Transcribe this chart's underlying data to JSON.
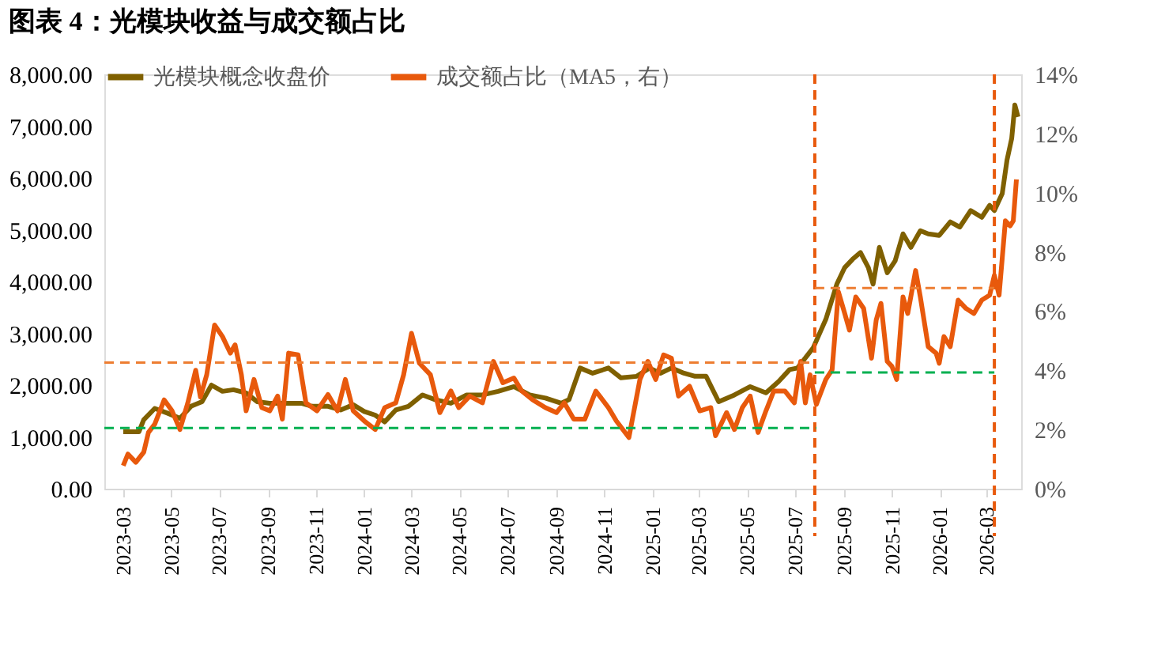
{
  "chart_data": {
    "type": "line",
    "title": "图表 4：光模块收益与成交额占比",
    "xlim": [
      "2023-02-05",
      "2026-04-14"
    ],
    "xticks": [
      "2023-03",
      "2023-05",
      "2023-07",
      "2023-09",
      "2023-11",
      "2024-01",
      "2024-03",
      "2024-05",
      "2024-07",
      "2024-09",
      "2024-11",
      "2025-01",
      "2025-03",
      "2025-05",
      "2025-07",
      "2025-09",
      "2025-11",
      "2026-01",
      "2026-03"
    ],
    "ylim": [
      0,
      8000
    ],
    "yticks": [
      {
        "value": 0,
        "label": "0.00"
      },
      {
        "value": 1000,
        "label": "1,000.00"
      },
      {
        "value": 2000,
        "label": "2,000.00"
      },
      {
        "value": 3000,
        "label": "3,000.00"
      },
      {
        "value": 4000,
        "label": "4,000.00"
      },
      {
        "value": 5000,
        "label": "5,000.00"
      },
      {
        "value": 6000,
        "label": "6,000.00"
      },
      {
        "value": 7000,
        "label": "7,000.00"
      },
      {
        "value": 8000,
        "label": "8,000.00"
      }
    ],
    "y2lim": [
      0,
      14
    ],
    "y2ticks": [
      {
        "value": 0,
        "label": "0%"
      },
      {
        "value": 2,
        "label": "2%"
      },
      {
        "value": 4,
        "label": "4%"
      },
      {
        "value": 6,
        "label": "6%"
      },
      {
        "value": 8,
        "label": "8%"
      },
      {
        "value": 10,
        "label": "10%"
      },
      {
        "value": 12,
        "label": "12%"
      },
      {
        "value": 14,
        "label": "14%"
      }
    ],
    "grid": false,
    "legend": "top",
    "line_style": "solid",
    "marker": "none",
    "series": [
      {
        "name": "光模块概念收盘价",
        "color": "#7f6000",
        "axis": "y",
        "x": [
          "2023-03-01",
          "2023-03-21",
          "2023-03-27",
          "2023-04-10",
          "2023-04-26",
          "2023-05-12",
          "2023-05-26",
          "2023-06-09",
          "2023-06-21",
          "2023-07-05",
          "2023-07-19",
          "2023-08-04",
          "2023-08-18",
          "2023-09-03",
          "2023-09-23",
          "2023-10-13",
          "2023-10-27",
          "2023-11-16",
          "2023-12-02",
          "2023-12-18",
          "2024-01-01",
          "2024-01-15",
          "2024-01-27",
          "2024-02-10",
          "2024-02-26",
          "2024-03-15",
          "2024-03-31",
          "2024-04-20",
          "2024-05-10",
          "2024-05-30",
          "2024-06-19",
          "2024-07-09",
          "2024-07-29",
          "2024-08-18",
          "2024-09-07",
          "2024-09-17",
          "2024-10-01",
          "2024-10-17",
          "2024-11-06",
          "2024-11-22",
          "2024-12-12",
          "2024-12-28",
          "2025-01-11",
          "2025-01-25",
          "2025-02-10",
          "2025-02-24",
          "2025-03-10",
          "2025-03-26",
          "2025-04-15",
          "2025-05-05",
          "2025-05-25",
          "2025-06-10",
          "2025-06-24",
          "2025-07-04",
          "2025-07-24",
          "2025-08-09",
          "2025-08-23",
          "2025-09-02",
          "2025-09-12",
          "2025-09-22",
          "2025-10-02",
          "2025-10-08",
          "2025-10-16",
          "2025-10-26",
          "2025-11-05",
          "2025-11-15",
          "2025-11-25",
          "2025-12-07",
          "2025-12-17",
          "2025-12-31",
          "2026-01-14",
          "2026-01-26",
          "2026-02-09",
          "2026-02-23",
          "2026-03-05",
          "2026-03-11",
          "2026-03-21",
          "2026-03-27",
          "2026-04-02",
          "2026-04-06",
          "2026-04-10"
        ],
        "values": [
          1100,
          1100,
          1330,
          1550,
          1460,
          1360,
          1590,
          1680,
          2000,
          1880,
          1910,
          1850,
          1680,
          1650,
          1650,
          1650,
          1590,
          1590,
          1520,
          1620,
          1490,
          1420,
          1290,
          1520,
          1590,
          1810,
          1720,
          1650,
          1810,
          1810,
          1880,
          1970,
          1810,
          1750,
          1650,
          1720,
          2330,
          2230,
          2330,
          2140,
          2170,
          2330,
          2230,
          2330,
          2230,
          2170,
          2170,
          1680,
          1810,
          1970,
          1850,
          2070,
          2300,
          2330,
          2720,
          3270,
          3950,
          4270,
          4430,
          4560,
          4270,
          3950,
          4660,
          4170,
          4400,
          4920,
          4660,
          4980,
          4920,
          4890,
          5150,
          5050,
          5370,
          5240,
          5470,
          5370,
          5700,
          6340,
          6760,
          7410,
          7180
        ]
      },
      {
        "name": "成交额占比（MA5，右）",
        "color": "#e8590c",
        "axis": "y2",
        "x": [
          "2023-03-01",
          "2023-03-07",
          "2023-03-17",
          "2023-03-27",
          "2023-04-02",
          "2023-04-10",
          "2023-04-22",
          "2023-05-02",
          "2023-05-12",
          "2023-05-22",
          "2023-06-01",
          "2023-06-07",
          "2023-06-15",
          "2023-06-25",
          "2023-07-05",
          "2023-07-15",
          "2023-07-21",
          "2023-07-29",
          "2023-08-04",
          "2023-08-14",
          "2023-08-24",
          "2023-09-03",
          "2023-09-13",
          "2023-09-19",
          "2023-09-27",
          "2023-10-09",
          "2023-10-19",
          "2023-11-02",
          "2023-11-16",
          "2023-11-28",
          "2023-12-08",
          "2023-12-18",
          "2024-01-01",
          "2024-01-15",
          "2024-01-27",
          "2024-02-10",
          "2024-02-20",
          "2024-03-01",
          "2024-03-11",
          "2024-03-25",
          "2024-04-06",
          "2024-04-20",
          "2024-04-30",
          "2024-05-14",
          "2024-05-30",
          "2024-06-13",
          "2024-06-25",
          "2024-07-09",
          "2024-07-19",
          "2024-08-02",
          "2024-08-18",
          "2024-09-01",
          "2024-09-11",
          "2024-09-23",
          "2024-10-07",
          "2024-10-21",
          "2024-11-06",
          "2024-11-16",
          "2024-12-02",
          "2024-12-16",
          "2024-12-26",
          "2025-01-05",
          "2025-01-15",
          "2025-01-25",
          "2025-02-03",
          "2025-02-17",
          "2025-03-02",
          "2025-03-16",
          "2025-03-22",
          "2025-04-05",
          "2025-04-15",
          "2025-04-25",
          "2025-05-05",
          "2025-05-15",
          "2025-05-25",
          "2025-06-04",
          "2025-06-18",
          "2025-06-30",
          "2025-07-08",
          "2025-07-14",
          "2025-07-20",
          "2025-07-28",
          "2025-08-09",
          "2025-08-17",
          "2025-08-25",
          "2025-09-02",
          "2025-09-08",
          "2025-09-16",
          "2025-09-26",
          "2025-10-06",
          "2025-10-12",
          "2025-10-18",
          "2025-10-26",
          "2025-11-01",
          "2025-11-07",
          "2025-11-15",
          "2025-11-21",
          "2025-12-01",
          "2025-12-07",
          "2025-12-17",
          "2025-12-27",
          "2025-12-31",
          "2026-01-06",
          "2026-01-14",
          "2026-01-24",
          "2026-02-03",
          "2026-02-13",
          "2026-02-23",
          "2026-03-05",
          "2026-03-11",
          "2026-03-17",
          "2026-03-25",
          "2026-03-31",
          "2026-04-04",
          "2026-04-08"
        ],
        "values": [
          0.78,
          1.17,
          0.89,
          1.23,
          1.9,
          2.18,
          3.0,
          2.63,
          2.0,
          2.9,
          4.0,
          3.1,
          3.85,
          5.53,
          5.14,
          4.58,
          4.86,
          3.85,
          2.63,
          3.69,
          2.74,
          2.63,
          3.13,
          2.35,
          4.58,
          4.52,
          2.9,
          2.63,
          3.18,
          2.63,
          3.69,
          2.63,
          2.29,
          2.0,
          2.74,
          2.9,
          3.85,
          5.25,
          4.24,
          3.85,
          2.57,
          3.3,
          2.74,
          3.13,
          2.9,
          4.3,
          3.58,
          3.74,
          3.3,
          3.0,
          2.74,
          2.57,
          2.9,
          2.35,
          2.35,
          3.3,
          2.74,
          2.29,
          1.73,
          3.69,
          4.3,
          3.69,
          4.52,
          4.41,
          3.13,
          3.46,
          2.63,
          2.74,
          1.79,
          2.57,
          2.0,
          2.74,
          3.13,
          1.9,
          2.63,
          3.3,
          3.3,
          2.9,
          4.3,
          2.9,
          3.85,
          2.85,
          3.69,
          4.02,
          6.65,
          5.92,
          5.36,
          6.48,
          6.09,
          4.41,
          5.7,
          6.26,
          4.3,
          4.13,
          3.69,
          6.48,
          5.92,
          7.37,
          6.48,
          4.8,
          4.58,
          4.24,
          5.14,
          4.8,
          6.37,
          6.09,
          5.92,
          6.37,
          6.54,
          7.21,
          6.54,
          9.05,
          8.88,
          9.05,
          10.45
        ]
      },
      {
        "type": "line",
        "color": "#ed7d31",
        "axis": "y2",
        "line_style": "dashed",
        "x": [
          "2023-02-05",
          "2025-07-26"
        ],
        "values": [
          4.26,
          4.26
        ]
      },
      {
        "type": "line",
        "color": "#00b050",
        "axis": "y2",
        "line_style": "dashed",
        "x": [
          "2023-02-05",
          "2025-07-28"
        ],
        "values": [
          2.05,
          2.05
        ]
      },
      {
        "type": "line",
        "color": "#ed7d31",
        "axis": "y2",
        "line_style": "dashed",
        "x": [
          "2025-07-26",
          "2026-03-11"
        ],
        "values": [
          6.78,
          6.78
        ]
      },
      {
        "type": "line",
        "color": "#00b050",
        "axis": "y2",
        "line_style": "dashed",
        "x": [
          "2025-07-26",
          "2026-03-11"
        ],
        "values": [
          3.93,
          3.93
        ]
      }
    ],
    "ref_lines": [
      {
        "axis": "x",
        "value": "2025-07-26",
        "color": "#e8590c",
        "line_style": "dashed"
      },
      {
        "axis": "x",
        "value": "2026-03-11",
        "color": "#e8590c",
        "line_style": "dashed"
      }
    ]
  }
}
